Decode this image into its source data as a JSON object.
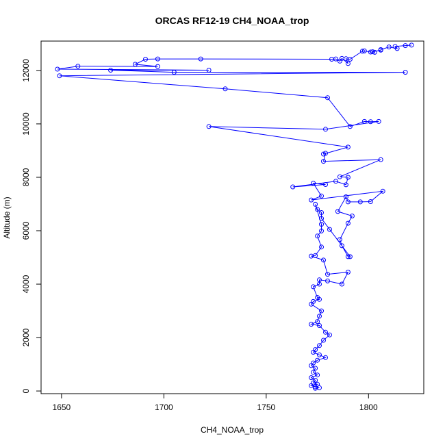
{
  "chart_data": {
    "type": "scatter",
    "title": "ORCAS RF12-19 CH4_NOAA_trop",
    "xlabel": "CH4_NOAA_trop",
    "ylabel": "Altitude (m)",
    "xlim": [
      1640,
      1827
    ],
    "ylim": [
      -100,
      13100
    ],
    "x_ticks": [
      1650,
      1700,
      1750,
      1800
    ],
    "y_ticks": [
      0,
      2000,
      4000,
      6000,
      8000,
      10000,
      12000
    ],
    "grid": false,
    "legend": "none",
    "color": "#0000ff",
    "points": [
      [
        1821,
        12950
      ],
      [
        1818,
        12930
      ],
      [
        1813,
        12900
      ],
      [
        1814,
        12820
      ],
      [
        1810,
        12880
      ],
      [
        1806,
        12780
      ],
      [
        1806,
        12760
      ],
      [
        1802,
        12700
      ],
      [
        1803,
        12680
      ],
      [
        1801,
        12690
      ],
      [
        1798,
        12730
      ],
      [
        1797,
        12720
      ],
      [
        1791,
        12420
      ],
      [
        1789,
        12440
      ],
      [
        1790,
        12260
      ],
      [
        1787,
        12450
      ],
      [
        1786,
        12350
      ],
      [
        1784,
        12430
      ],
      [
        1782,
        12420
      ],
      [
        1718,
        12430
      ],
      [
        1697,
        12430
      ],
      [
        1691,
        12420
      ],
      [
        1686,
        12230
      ],
      [
        1697,
        12150
      ],
      [
        1658,
        12160
      ],
      [
        1648,
        12050
      ],
      [
        1722,
        12010
      ],
      [
        1674,
        12010
      ],
      [
        1705,
        11930
      ],
      [
        1818,
        11930
      ],
      [
        1649,
        11800
      ],
      [
        1730,
        11310
      ],
      [
        1780,
        10980
      ],
      [
        1791,
        9900
      ],
      [
        1798,
        10090
      ],
      [
        1801,
        10080
      ],
      [
        1805,
        10090
      ],
      [
        1779,
        9800
      ],
      [
        1722,
        9900
      ],
      [
        1790,
        9130
      ],
      [
        1778,
        8870
      ],
      [
        1779,
        8900
      ],
      [
        1778,
        8600
      ],
      [
        1806,
        8660
      ],
      [
        1786,
        8020
      ],
      [
        1790,
        8000
      ],
      [
        1789,
        7720
      ],
      [
        1784,
        7850
      ],
      [
        1763,
        7640
      ],
      [
        1779,
        7730
      ],
      [
        1773,
        7780
      ],
      [
        1777,
        7300
      ],
      [
        1772,
        7150
      ],
      [
        1807,
        7480
      ],
      [
        1801,
        7090
      ],
      [
        1796,
        7080
      ],
      [
        1790,
        7080
      ],
      [
        1789,
        7270
      ],
      [
        1785,
        6720
      ],
      [
        1792,
        6550
      ],
      [
        1790,
        6280
      ],
      [
        1786,
        5670
      ],
      [
        1787,
        5440
      ],
      [
        1790,
        5030
      ],
      [
        1791,
        5030
      ],
      [
        1781,
        6050
      ],
      [
        1777,
        6460
      ],
      [
        1777,
        6680
      ],
      [
        1775,
        6800
      ],
      [
        1774,
        6990
      ],
      [
        1777,
        6240
      ],
      [
        1777,
        5990
      ],
      [
        1775,
        5800
      ],
      [
        1777,
        5390
      ],
      [
        1774,
        5070
      ],
      [
        1772,
        5050
      ],
      [
        1778,
        4900
      ],
      [
        1780,
        4370
      ],
      [
        1790,
        4450
      ],
      [
        1787,
        4000
      ],
      [
        1780,
        4120
      ],
      [
        1776,
        4160
      ],
      [
        1776,
        4000
      ],
      [
        1773,
        3900
      ],
      [
        1775,
        3500
      ],
      [
        1776,
        3430
      ],
      [
        1773,
        3350
      ],
      [
        1772,
        3250
      ],
      [
        1777,
        3000
      ],
      [
        1776,
        2800
      ],
      [
        1775,
        2600
      ],
      [
        1772,
        2500
      ],
      [
        1776,
        2450
      ],
      [
        1779,
        2200
      ],
      [
        1781,
        2100
      ],
      [
        1778,
        1900
      ],
      [
        1776,
        1700
      ],
      [
        1774,
        1550
      ],
      [
        1773,
        1450
      ],
      [
        1776,
        1350
      ],
      [
        1779,
        1250
      ],
      [
        1775,
        1150
      ],
      [
        1773,
        1050
      ],
      [
        1772,
        950
      ],
      [
        1774,
        850
      ],
      [
        1773,
        700
      ],
      [
        1775,
        600
      ],
      [
        1772,
        500
      ],
      [
        1774,
        400
      ],
      [
        1773,
        300
      ],
      [
        1775,
        250
      ],
      [
        1772,
        200
      ],
      [
        1774,
        150
      ],
      [
        1776,
        120
      ],
      [
        1774,
        100
      ]
    ]
  }
}
